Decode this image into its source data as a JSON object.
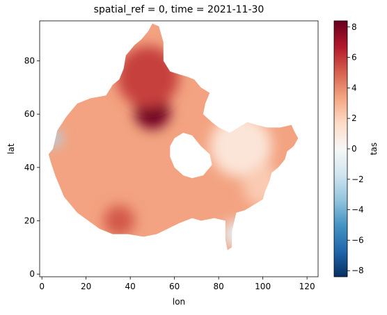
{
  "chart_data": {
    "type": "heatmap",
    "title": "spatial_ref = 0, time = 2021-11-30",
    "xlabel": "lon",
    "ylabel": "lat",
    "xlim": [
      -1,
      125
    ],
    "ylim": [
      -1,
      95
    ],
    "x_ticks": [
      0,
      20,
      40,
      60,
      80,
      100,
      120
    ],
    "y_ticks": [
      0,
      20,
      40,
      60,
      80
    ],
    "colorbar": {
      "label": "tas",
      "range": [
        -8.4,
        8.4
      ],
      "ticks": [
        -8,
        -6,
        -4,
        -2,
        0,
        2,
        4,
        6,
        8
      ],
      "colormap": "RdBu_r",
      "stops": [
        "#053061",
        "#2166ac",
        "#4393c3",
        "#92c5de",
        "#d1e5f0",
        "#f7f7f7",
        "#fddbc7",
        "#f4a582",
        "#d6604d",
        "#b2182b",
        "#67001f"
      ]
    },
    "grid": false,
    "domain_region": [
      [
        5,
        47
      ],
      [
        7,
        54
      ],
      [
        11,
        59
      ],
      [
        13,
        61
      ],
      [
        16,
        64
      ],
      [
        22,
        66
      ],
      [
        29,
        67
      ],
      [
        32,
        71
      ],
      [
        35,
        73
      ],
      [
        37,
        77
      ],
      [
        38,
        82
      ],
      [
        42,
        86
      ],
      [
        45,
        88
      ],
      [
        48,
        91
      ],
      [
        50,
        94
      ],
      [
        53,
        93
      ],
      [
        55,
        87
      ],
      [
        55,
        80
      ],
      [
        58,
        76
      ],
      [
        62,
        75
      ],
      [
        66,
        74
      ],
      [
        69,
        73
      ],
      [
        72,
        70
      ],
      [
        76,
        68
      ],
      [
        74,
        64
      ],
      [
        73,
        60
      ],
      [
        77,
        57
      ],
      [
        80,
        55
      ],
      [
        85,
        53
      ],
      [
        91,
        56
      ],
      [
        93,
        57
      ],
      [
        97,
        56
      ],
      [
        102,
        55
      ],
      [
        108,
        55
      ],
      [
        113,
        56
      ],
      [
        114,
        54
      ],
      [
        116,
        51
      ],
      [
        114,
        48
      ],
      [
        111,
        46
      ],
      [
        110,
        43
      ],
      [
        107,
        40
      ],
      [
        104,
        38
      ],
      [
        103,
        35
      ],
      [
        101,
        31
      ],
      [
        100,
        28
      ],
      [
        96,
        26
      ],
      [
        92,
        24
      ],
      [
        88,
        23
      ],
      [
        86,
        16
      ],
      [
        86,
        10
      ],
      [
        84,
        9
      ],
      [
        83,
        13
      ],
      [
        83,
        20
      ],
      [
        78,
        21
      ],
      [
        72,
        20
      ],
      [
        68,
        21
      ],
      [
        62,
        19
      ],
      [
        57,
        17
      ],
      [
        52,
        15
      ],
      [
        46,
        14
      ],
      [
        39,
        15
      ],
      [
        32,
        15
      ],
      [
        26,
        17
      ],
      [
        21,
        20
      ],
      [
        16,
        23
      ],
      [
        12,
        27
      ],
      [
        10,
        29
      ],
      [
        8,
        33
      ],
      [
        6,
        37
      ],
      [
        4,
        42
      ],
      [
        3,
        45
      ]
    ],
    "hole_region": [
      [
        60,
        51
      ],
      [
        64,
        53
      ],
      [
        68,
        52
      ],
      [
        72,
        48
      ],
      [
        76,
        45
      ],
      [
        77,
        41
      ],
      [
        73,
        37
      ],
      [
        68,
        36
      ],
      [
        64,
        37
      ],
      [
        60,
        40
      ],
      [
        58,
        44
      ],
      [
        58,
        48
      ]
    ],
    "hotspots": [
      {
        "lon": 50,
        "lat": 61,
        "value": 8.2,
        "radius": 8
      },
      {
        "lon": 48,
        "lat": 74,
        "value": 5.8,
        "radius": 14
      },
      {
        "lon": 35,
        "lat": 20,
        "value": 5.2,
        "radius": 7
      },
      {
        "lon": 5,
        "lat": 51,
        "value": -2.6,
        "radius": 4
      },
      {
        "lon": 88,
        "lat": 15,
        "value": -0.8,
        "radius": 6
      },
      {
        "lon": 90,
        "lat": 48,
        "value": 1.1,
        "radius": 14
      },
      {
        "lon": 100,
        "lat": 33,
        "value": 2.2,
        "radius": 9
      }
    ]
  }
}
